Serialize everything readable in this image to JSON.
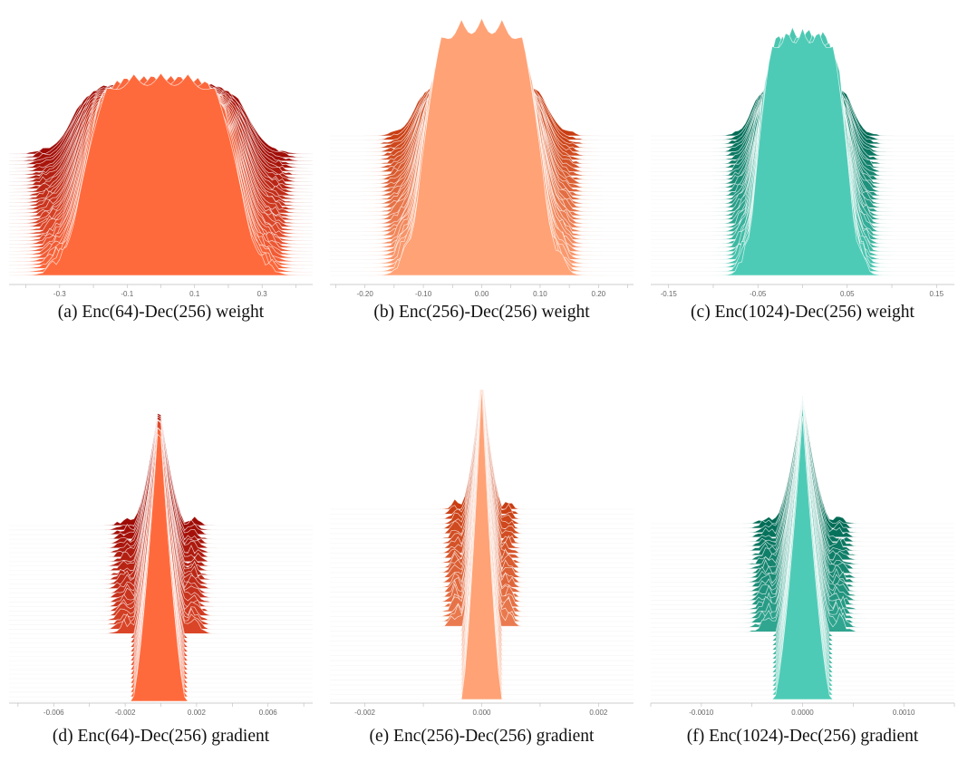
{
  "chart_data": [
    {
      "type": "area",
      "subtype": "ridgeline-histogram",
      "caption": "(a) Enc(64)-Dec(256) weight",
      "xlim": [
        -0.45,
        0.45
      ],
      "xticks": [
        -0.3,
        -0.1,
        0.1,
        0.3
      ],
      "xtick_labels": [
        "-0.3",
        "-0.1",
        "0.1",
        "0.3"
      ],
      "colors": {
        "front": "#ff6a3d",
        "back": "#9e0a05"
      },
      "profile": "plateau",
      "core_halfwidth": 0.23,
      "ridges": 36
    },
    {
      "type": "area",
      "subtype": "ridgeline-histogram",
      "caption": "(b) Enc(256)-Dec(256) weight",
      "xlim": [
        -0.26,
        0.26
      ],
      "xticks": [
        -0.2,
        -0.1,
        0.0,
        0.1,
        0.2
      ],
      "xtick_labels": [
        "-0.20",
        "-0.10",
        "0.00",
        "0.10",
        "0.20"
      ],
      "colors": {
        "front": "#ffa276",
        "back": "#c93d12"
      },
      "profile": "plateau",
      "core_halfwidth": 0.1,
      "ridges": 36
    },
    {
      "type": "area",
      "subtype": "ridgeline-histogram",
      "caption": "(c) Enc(1024)-Dec(256) weight",
      "xlim": [
        -0.17,
        0.17
      ],
      "xticks": [
        -0.15,
        -0.05,
        0.05,
        0.15
      ],
      "xtick_labels": [
        "-0.15",
        "-0.05",
        "0.05",
        "0.15"
      ],
      "colors": {
        "front": "#4ecbb6",
        "back": "#006b55"
      },
      "profile": "plateau",
      "core_halfwidth": 0.05,
      "ridges": 36
    },
    {
      "type": "area",
      "subtype": "ridgeline-histogram",
      "caption": "(d) Enc(64)-Dec(256) gradient",
      "xlim": [
        -0.0085,
        0.0085
      ],
      "xticks": [
        -0.006,
        -0.002,
        0.002,
        0.006
      ],
      "xtick_labels": [
        "-0.006",
        "-0.002",
        "0.002",
        "0.006"
      ],
      "colors": {
        "front": "#ff6a3d",
        "back": "#9e0a05"
      },
      "profile": "spike",
      "center": -0.0001,
      "core_halfwidth": 0.0015,
      "ridges": 40
    },
    {
      "type": "area",
      "subtype": "ridgeline-histogram",
      "caption": "(e) Enc(256)-Dec(256) gradient",
      "xlim": [
        -0.0026,
        0.0026
      ],
      "xticks": [
        -0.002,
        0.0,
        0.002
      ],
      "xtick_labels": [
        "-0.002",
        "0.000",
        "0.002"
      ],
      "colors": {
        "front": "#ffa276",
        "back": "#c93d12"
      },
      "profile": "spike",
      "center": 0.0,
      "core_halfwidth": 0.00035,
      "ridges": 40
    },
    {
      "type": "area",
      "subtype": "ridgeline-histogram",
      "caption": "(f) Enc(1024)-Dec(256) gradient",
      "xlim": [
        -0.0015,
        0.0015
      ],
      "xticks": [
        -0.001,
        0.0,
        0.001
      ],
      "xtick_labels": [
        "-0.0010",
        "0.0000",
        "0.0010"
      ],
      "colors": {
        "front": "#4ecbb6",
        "back": "#006b55"
      },
      "profile": "spike",
      "center": 0.0,
      "core_halfwidth": 0.00028,
      "ridges": 40
    }
  ]
}
